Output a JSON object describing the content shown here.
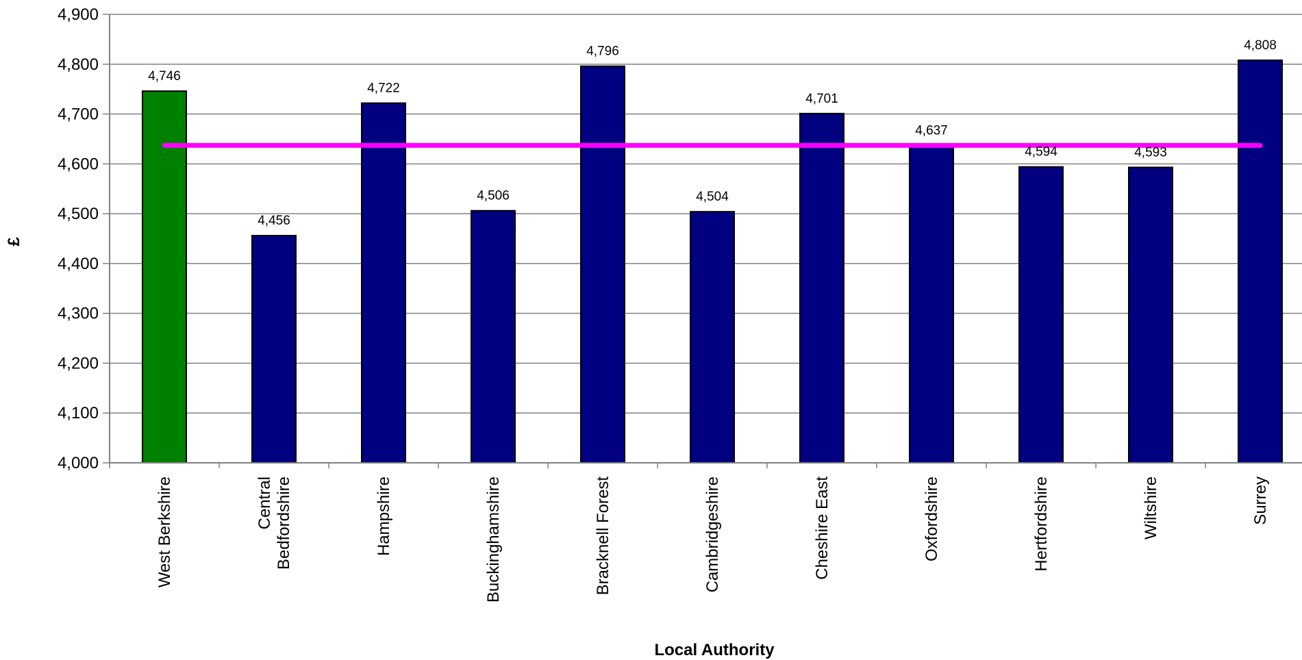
{
  "chart_data": {
    "type": "bar",
    "title": "",
    "xlabel": "Local Authority",
    "ylabel": "£",
    "ylim": [
      4000,
      4900
    ],
    "yticks": [
      4000,
      4100,
      4200,
      4300,
      4400,
      4500,
      4600,
      4700,
      4800,
      4900
    ],
    "ytick_labels": [
      "4,000",
      "4,100",
      "4,200",
      "4,300",
      "4,400",
      "4,500",
      "4,600",
      "4,700",
      "4,800",
      "4,900"
    ],
    "grid": true,
    "categories": [
      [
        "West Berkshire"
      ],
      [
        "Central",
        "Bedfordshire"
      ],
      [
        "Hampshire"
      ],
      [
        "Buckinghamshire"
      ],
      [
        "Bracknell Forest"
      ],
      [
        "Cambridgeshire"
      ],
      [
        "Cheshire East"
      ],
      [
        "Oxfordshire"
      ],
      [
        "Hertfordshire"
      ],
      [
        "Wiltshire"
      ],
      [
        "Surrey"
      ]
    ],
    "values": [
      4746,
      4456,
      4722,
      4506,
      4796,
      4504,
      4701,
      4637,
      4594,
      4593,
      4808
    ],
    "value_labels": [
      "4,746",
      "4,456",
      "4,722",
      "4,506",
      "4,796",
      "4,504",
      "4,701",
      "4,637",
      "4,594",
      "4,593",
      "4,808"
    ],
    "bar_colors": [
      "#008000",
      "#000080",
      "#000080",
      "#000080",
      "#000080",
      "#000080",
      "#000080",
      "#000080",
      "#000080",
      "#000080",
      "#000080"
    ],
    "reference_line": {
      "value": 4637,
      "color": "#ff00ff"
    }
  }
}
